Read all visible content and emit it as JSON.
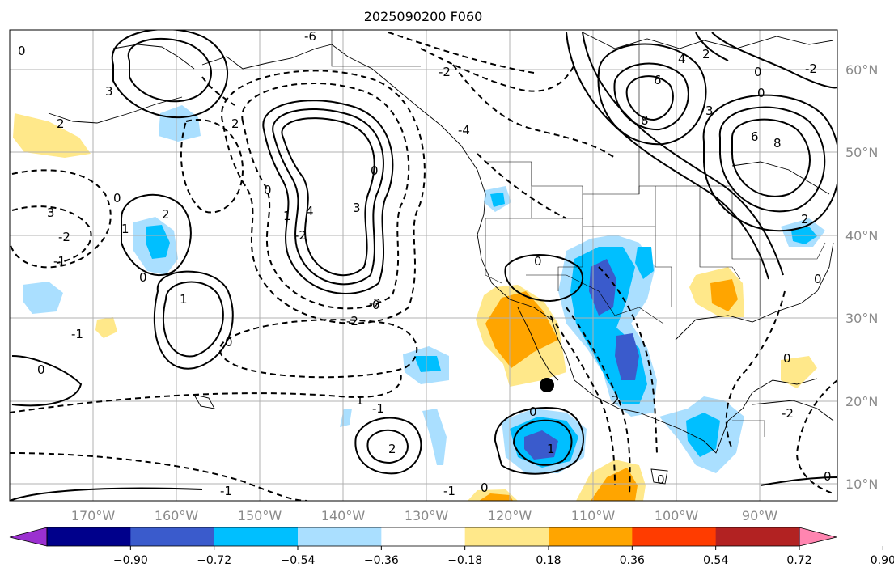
{
  "title": "2025090200 F060",
  "lon_labels": [
    "170°W",
    "160°W",
    "150°W",
    "140°W",
    "130°W",
    "120°W",
    "110°W",
    "100°W",
    "90°W"
  ],
  "lat_labels": [
    "60°N",
    "50°N",
    "40°N",
    "30°N",
    "20°N",
    "10°N"
  ],
  "colorbar": {
    "tick_labels": [
      "−0.90",
      "−0.72",
      "−0.54",
      "−0.36",
      "−0.18",
      "0.18",
      "0.36",
      "0.54",
      "0.72",
      "0.90"
    ],
    "colors": [
      "#9b30d0",
      "#00008b",
      "#3a5bcc",
      "#00bfff",
      "#aadfff",
      "#ffffff",
      "#ffe88a",
      "#ffa500",
      "#ff3c00",
      "#b22222",
      "#ff85b0"
    ]
  },
  "contour_labels": [
    "3",
    "0",
    "2",
    "3",
    "-2",
    "-1",
    "-1",
    "-1",
    "0",
    "1",
    "0",
    "2",
    "0",
    "1",
    "0",
    "4",
    "3",
    "0",
    "0",
    "1",
    "-2",
    "-2",
    "0",
    "-6",
    "-4",
    "-2",
    "0",
    "1",
    "2",
    "6",
    "8",
    "4",
    "2",
    "0",
    "3",
    "6",
    "8",
    "0",
    "2",
    "-2",
    "2",
    "0",
    "0",
    "0",
    "1",
    "2",
    "0",
    "-1",
    "0",
    "0",
    "-2",
    "-1",
    "-2"
  ],
  "marker": "black-dot"
}
